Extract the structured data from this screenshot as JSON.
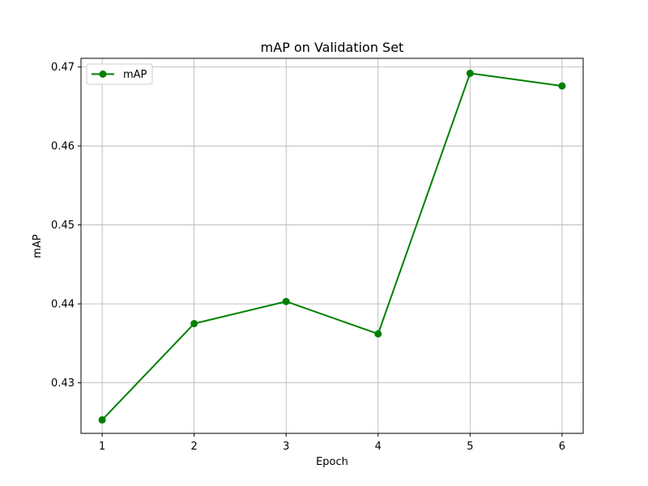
{
  "chart_data": {
    "type": "line",
    "title": "mAP on Validation Set",
    "xlabel": "Epoch",
    "ylabel": "mAP",
    "x": [
      1,
      2,
      3,
      4,
      5,
      6
    ],
    "xticks": [
      "1",
      "2",
      "3",
      "4",
      "5",
      "6"
    ],
    "yticks": [
      "0.43",
      "0.44",
      "0.45",
      "0.46",
      "0.47"
    ],
    "xlim": [
      0.77,
      6.23
    ],
    "ylim": [
      0.4236,
      0.4711
    ],
    "grid": true,
    "legend_position": "top-left",
    "series": [
      {
        "name": "mAP",
        "color": "#008000",
        "marker": "circle",
        "values": [
          0.4253,
          0.4375,
          0.4403,
          0.4362,
          0.4692,
          0.4676
        ]
      }
    ]
  }
}
